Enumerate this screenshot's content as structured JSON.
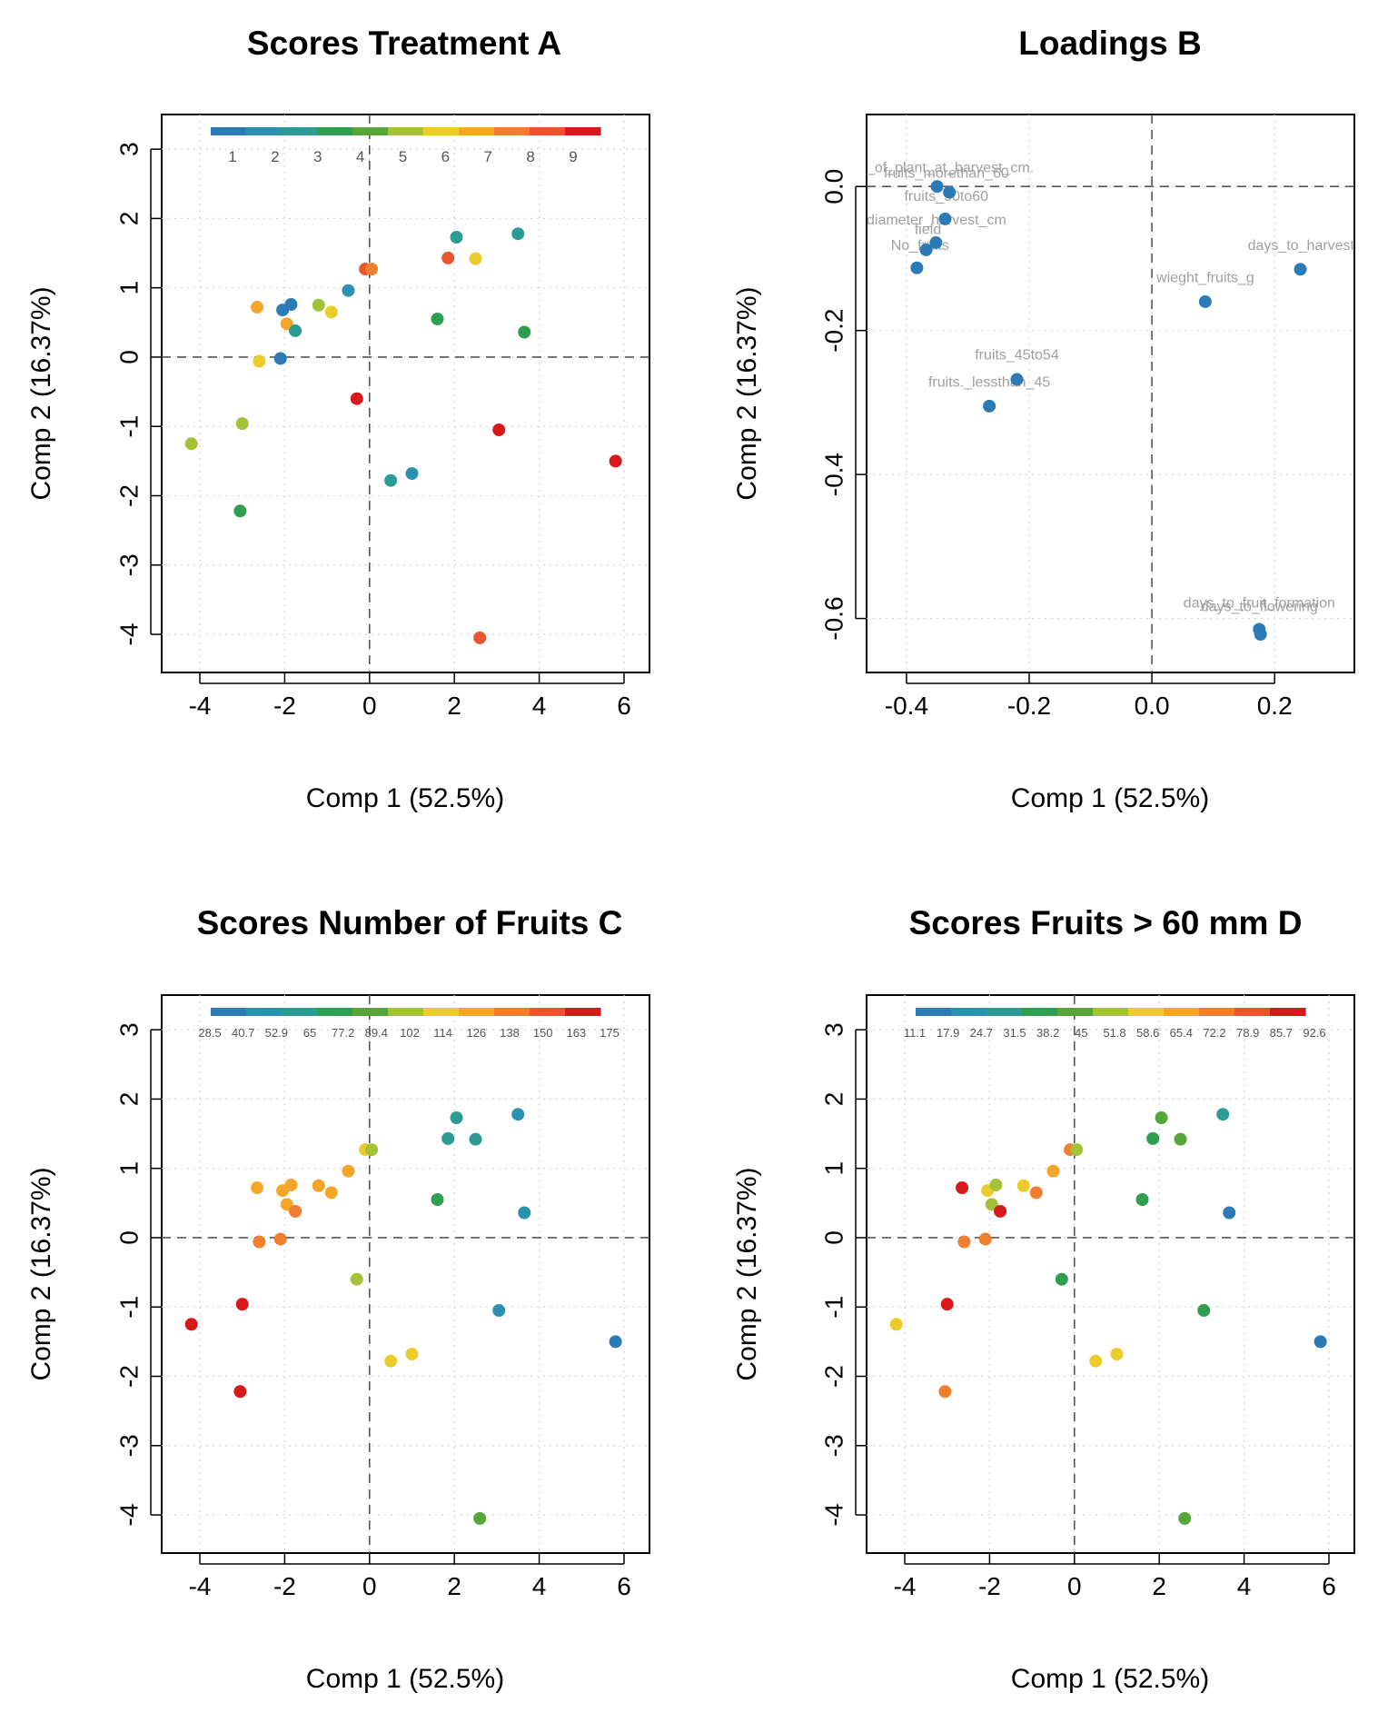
{
  "palette": [
    "#2c7bb6",
    "#2b91b0",
    "#2b9b94",
    "#2f9e4e",
    "#55a538",
    "#a3c237",
    "#eccc2a",
    "#f5a629",
    "#f07e2f",
    "#e8562e",
    "#d7191c"
  ],
  "chart_data": [
    {
      "id": "A",
      "type": "scatter",
      "title": "Scores Treatment A",
      "xlabel": "Comp 1 (52.5%)",
      "ylabel": "Comp 2 (16.37%)",
      "xlim": [
        -4.9,
        6.6
      ],
      "ylim": [
        -4.55,
        3.5
      ],
      "xticks": [
        -4,
        -2,
        0,
        2,
        4,
        6
      ],
      "yticks": [
        3,
        2,
        1,
        0,
        -1,
        -2,
        -3,
        -4
      ],
      "legend": {
        "labels": [
          "1",
          "2",
          "3",
          "4",
          "5",
          "6",
          "7",
          "8",
          "9"
        ],
        "position": "top"
      },
      "points": [
        {
          "x": -2.65,
          "y": 0.72,
          "c": "#f5a629"
        },
        {
          "x": -2.05,
          "y": 0.68,
          "c": "#2c7bb6"
        },
        {
          "x": -1.85,
          "y": 0.76,
          "c": "#2c7bb6"
        },
        {
          "x": -1.95,
          "y": 0.48,
          "c": "#f5a629"
        },
        {
          "x": -1.75,
          "y": 0.38,
          "c": "#2b9b94"
        },
        {
          "x": -1.2,
          "y": 0.75,
          "c": "#a3c237"
        },
        {
          "x": -0.9,
          "y": 0.65,
          "c": "#eccc2a"
        },
        {
          "x": -0.5,
          "y": 0.96,
          "c": "#2b91b0"
        },
        {
          "x": -0.1,
          "y": 1.27,
          "c": "#e8562e"
        },
        {
          "x": 0.05,
          "y": 1.27,
          "c": "#f07e2f"
        },
        {
          "x": 1.85,
          "y": 1.43,
          "c": "#e8562e"
        },
        {
          "x": 2.05,
          "y": 1.73,
          "c": "#2b9b94"
        },
        {
          "x": 2.5,
          "y": 1.42,
          "c": "#eccc2a"
        },
        {
          "x": 3.5,
          "y": 1.78,
          "c": "#2b9b94"
        },
        {
          "x": 1.6,
          "y": 0.55,
          "c": "#2f9e4e"
        },
        {
          "x": 3.65,
          "y": 0.36,
          "c": "#2f9e4e"
        },
        {
          "x": -2.1,
          "y": -0.02,
          "c": "#2c7bb6"
        },
        {
          "x": -2.6,
          "y": -0.06,
          "c": "#eccc2a"
        },
        {
          "x": -0.3,
          "y": -0.6,
          "c": "#d7191c"
        },
        {
          "x": -3.0,
          "y": -0.96,
          "c": "#a3c237"
        },
        {
          "x": -4.2,
          "y": -1.25,
          "c": "#a3c237"
        },
        {
          "x": 3.05,
          "y": -1.05,
          "c": "#d7191c"
        },
        {
          "x": 0.5,
          "y": -1.78,
          "c": "#2b9b94"
        },
        {
          "x": 1.0,
          "y": -1.68,
          "c": "#2b91b0"
        },
        {
          "x": 5.8,
          "y": -1.5,
          "c": "#d7191c"
        },
        {
          "x": -3.05,
          "y": -2.22,
          "c": "#2f9e4e"
        },
        {
          "x": 2.6,
          "y": -4.05,
          "c": "#e8562e"
        }
      ]
    },
    {
      "id": "B",
      "type": "scatter",
      "title": "Loadings  B",
      "xlabel": "Comp 1 (52.5%)",
      "ylabel": "Comp 2 (16.37%)",
      "xlim": [
        -0.465,
        0.33
      ],
      "ylim": [
        -0.675,
        0.1
      ],
      "xticks": [
        -0.4,
        -0.2,
        0.0,
        0.2
      ],
      "yticks": [
        0.0,
        -0.2,
        -0.4,
        -0.6
      ],
      "xtick_labels": [
        "-0.4",
        "-0.2",
        "0.0",
        "0.2"
      ],
      "ytick_labels": [
        "0.0",
        "-0.2",
        "-0.4",
        "-0.6"
      ],
      "points": [
        {
          "x": -0.35,
          "y": 0.0,
          "c": "#2c7bb6"
        },
        {
          "x": -0.33,
          "y": -0.008,
          "c": "#2c7bb6"
        },
        {
          "x": -0.337,
          "y": -0.045,
          "c": "#2c7bb6"
        },
        {
          "x": -0.352,
          "y": -0.078,
          "c": "#2c7bb6"
        },
        {
          "x": -0.368,
          "y": -0.088,
          "c": "#2c7bb6"
        },
        {
          "x": -0.383,
          "y": -0.113,
          "c": "#2c7bb6"
        },
        {
          "x": 0.242,
          "y": -0.115,
          "c": "#2c7bb6"
        },
        {
          "x": 0.087,
          "y": -0.16,
          "c": "#2c7bb6"
        },
        {
          "x": -0.22,
          "y": -0.268,
          "c": "#2c7bb6"
        },
        {
          "x": -0.265,
          "y": -0.305,
          "c": "#2c7bb6"
        },
        {
          "x": 0.175,
          "y": -0.615,
          "c": "#2c7bb6"
        },
        {
          "x": 0.177,
          "y": -0.622,
          "c": "#2c7bb6"
        }
      ],
      "labels": [
        {
          "text": "_of_plant_at_harvest_cm.",
          "x": -0.465,
          "y": 0.02,
          "anchor": "start"
        },
        {
          "text": "fruits_morethan_60",
          "x": -0.335,
          "y": 0.012,
          "anchor": "middle"
        },
        {
          "text": "fruits_50to60",
          "x": -0.335,
          "y": -0.02,
          "anchor": "middle"
        },
        {
          "text": "diameter_harvest_cm",
          "x": -0.465,
          "y": -0.053,
          "anchor": "start"
        },
        {
          "text": "field",
          "x": -0.365,
          "y": -0.066,
          "anchor": "middle"
        },
        {
          "text": "No_fruits",
          "x": -0.378,
          "y": -0.088,
          "anchor": "middle"
        },
        {
          "text": "days_to_harvest",
          "x": 0.33,
          "y": -0.088,
          "anchor": "end"
        },
        {
          "text": "wieght_fruits_g",
          "x": 0.087,
          "y": -0.133,
          "anchor": "middle"
        },
        {
          "text": "fruits_45to54",
          "x": -0.22,
          "y": -0.24,
          "anchor": "middle"
        },
        {
          "text": "fruits._lessthan_45",
          "x": -0.265,
          "y": -0.278,
          "anchor": "middle"
        },
        {
          "text": "days_to_fruit_formation",
          "x": 0.175,
          "y": -0.585,
          "anchor": "middle"
        },
        {
          "text": "days_to_flowering",
          "x": 0.175,
          "y": -0.59,
          "anchor": "middle"
        }
      ]
    },
    {
      "id": "C",
      "type": "scatter",
      "title": "Scores Number of Fruits  C",
      "xlabel": "Comp 1 (52.5%)",
      "ylabel": "Comp 2 (16.37%)",
      "xlim": [
        -4.9,
        6.6
      ],
      "ylim": [
        -4.55,
        3.5
      ],
      "xticks": [
        -4,
        -2,
        0,
        2,
        4,
        6
      ],
      "yticks": [
        3,
        2,
        1,
        0,
        -1,
        -2,
        -3,
        -4
      ],
      "legend": {
        "labels": [
          "28.5",
          "40.7",
          "52.9",
          "65",
          "77.2",
          "89.4",
          "102",
          "114",
          "126",
          "138",
          "150",
          "163",
          "175"
        ],
        "position": "top"
      },
      "points": [
        {
          "x": -2.65,
          "y": 0.72,
          "c": "#f5a629"
        },
        {
          "x": -2.05,
          "y": 0.68,
          "c": "#f5a629"
        },
        {
          "x": -1.85,
          "y": 0.76,
          "c": "#f5a629"
        },
        {
          "x": -1.95,
          "y": 0.48,
          "c": "#f5a629"
        },
        {
          "x": -1.75,
          "y": 0.38,
          "c": "#f07e2f"
        },
        {
          "x": -1.2,
          "y": 0.75,
          "c": "#f5a629"
        },
        {
          "x": -0.9,
          "y": 0.65,
          "c": "#f5a629"
        },
        {
          "x": -0.5,
          "y": 0.96,
          "c": "#f5a629"
        },
        {
          "x": -0.1,
          "y": 1.27,
          "c": "#eccc2a"
        },
        {
          "x": 0.05,
          "y": 1.27,
          "c": "#a3c237"
        },
        {
          "x": 1.85,
          "y": 1.43,
          "c": "#2b9b94"
        },
        {
          "x": 2.05,
          "y": 1.73,
          "c": "#2b9b94"
        },
        {
          "x": 2.5,
          "y": 1.42,
          "c": "#2b9b94"
        },
        {
          "x": 3.5,
          "y": 1.78,
          "c": "#2b91b0"
        },
        {
          "x": 1.6,
          "y": 0.55,
          "c": "#2f9e4e"
        },
        {
          "x": 3.65,
          "y": 0.36,
          "c": "#2b91b0"
        },
        {
          "x": -2.1,
          "y": -0.02,
          "c": "#f07e2f"
        },
        {
          "x": -2.6,
          "y": -0.06,
          "c": "#f07e2f"
        },
        {
          "x": -0.3,
          "y": -0.6,
          "c": "#a3c237"
        },
        {
          "x": -3.0,
          "y": -0.96,
          "c": "#d7191c"
        },
        {
          "x": -4.2,
          "y": -1.25,
          "c": "#d7191c"
        },
        {
          "x": 3.05,
          "y": -1.05,
          "c": "#2b91b0"
        },
        {
          "x": 0.5,
          "y": -1.78,
          "c": "#eccc2a"
        },
        {
          "x": 1.0,
          "y": -1.68,
          "c": "#eccc2a"
        },
        {
          "x": 5.8,
          "y": -1.5,
          "c": "#2c7bb6"
        },
        {
          "x": -3.05,
          "y": -2.22,
          "c": "#d7191c"
        },
        {
          "x": 2.6,
          "y": -4.05,
          "c": "#55a538"
        }
      ]
    },
    {
      "id": "D",
      "type": "scatter",
      "title": "Scores Fruits > 60 mm  D",
      "xlabel": "Comp 1 (52.5%)",
      "ylabel": "Comp 2 (16.37%)",
      "xlim": [
        -4.9,
        6.6
      ],
      "ylim": [
        -4.55,
        3.5
      ],
      "xticks": [
        -4,
        -2,
        0,
        2,
        4,
        6
      ],
      "yticks": [
        3,
        2,
        1,
        0,
        -1,
        -2,
        -3,
        -4
      ],
      "legend": {
        "labels": [
          "11.1",
          "17.9",
          "24.7",
          "31.5",
          "38.2",
          "45",
          "51.8",
          "58.6",
          "65.4",
          "72.2",
          "78.9",
          "85.7",
          "92.6"
        ],
        "position": "top"
      },
      "points": [
        {
          "x": -2.65,
          "y": 0.72,
          "c": "#d7191c"
        },
        {
          "x": -2.05,
          "y": 0.68,
          "c": "#eccc2a"
        },
        {
          "x": -1.85,
          "y": 0.76,
          "c": "#a3c237"
        },
        {
          "x": -1.95,
          "y": 0.48,
          "c": "#a3c237"
        },
        {
          "x": -1.75,
          "y": 0.38,
          "c": "#d7191c"
        },
        {
          "x": -1.2,
          "y": 0.75,
          "c": "#eccc2a"
        },
        {
          "x": -0.9,
          "y": 0.65,
          "c": "#f07e2f"
        },
        {
          "x": -0.5,
          "y": 0.96,
          "c": "#f5a629"
        },
        {
          "x": -0.1,
          "y": 1.27,
          "c": "#f07e2f"
        },
        {
          "x": 0.05,
          "y": 1.27,
          "c": "#a3c237"
        },
        {
          "x": 1.85,
          "y": 1.43,
          "c": "#2f9e4e"
        },
        {
          "x": 2.05,
          "y": 1.73,
          "c": "#55a538"
        },
        {
          "x": 2.5,
          "y": 1.42,
          "c": "#55a538"
        },
        {
          "x": 3.5,
          "y": 1.78,
          "c": "#2b9b94"
        },
        {
          "x": 1.6,
          "y": 0.55,
          "c": "#2f9e4e"
        },
        {
          "x": 3.65,
          "y": 0.36,
          "c": "#2c7bb6"
        },
        {
          "x": -2.1,
          "y": -0.02,
          "c": "#f07e2f"
        },
        {
          "x": -2.6,
          "y": -0.06,
          "c": "#f07e2f"
        },
        {
          "x": -0.3,
          "y": -0.6,
          "c": "#2f9e4e"
        },
        {
          "x": -3.0,
          "y": -0.96,
          "c": "#d7191c"
        },
        {
          "x": -4.2,
          "y": -1.25,
          "c": "#eccc2a"
        },
        {
          "x": 3.05,
          "y": -1.05,
          "c": "#2f9e4e"
        },
        {
          "x": 0.5,
          "y": -1.78,
          "c": "#eccc2a"
        },
        {
          "x": 1.0,
          "y": -1.68,
          "c": "#eccc2a"
        },
        {
          "x": 5.8,
          "y": -1.5,
          "c": "#2c7bb6"
        },
        {
          "x": -3.05,
          "y": -2.22,
          "c": "#f07e2f"
        },
        {
          "x": 2.6,
          "y": -4.05,
          "c": "#55a538"
        }
      ]
    }
  ]
}
